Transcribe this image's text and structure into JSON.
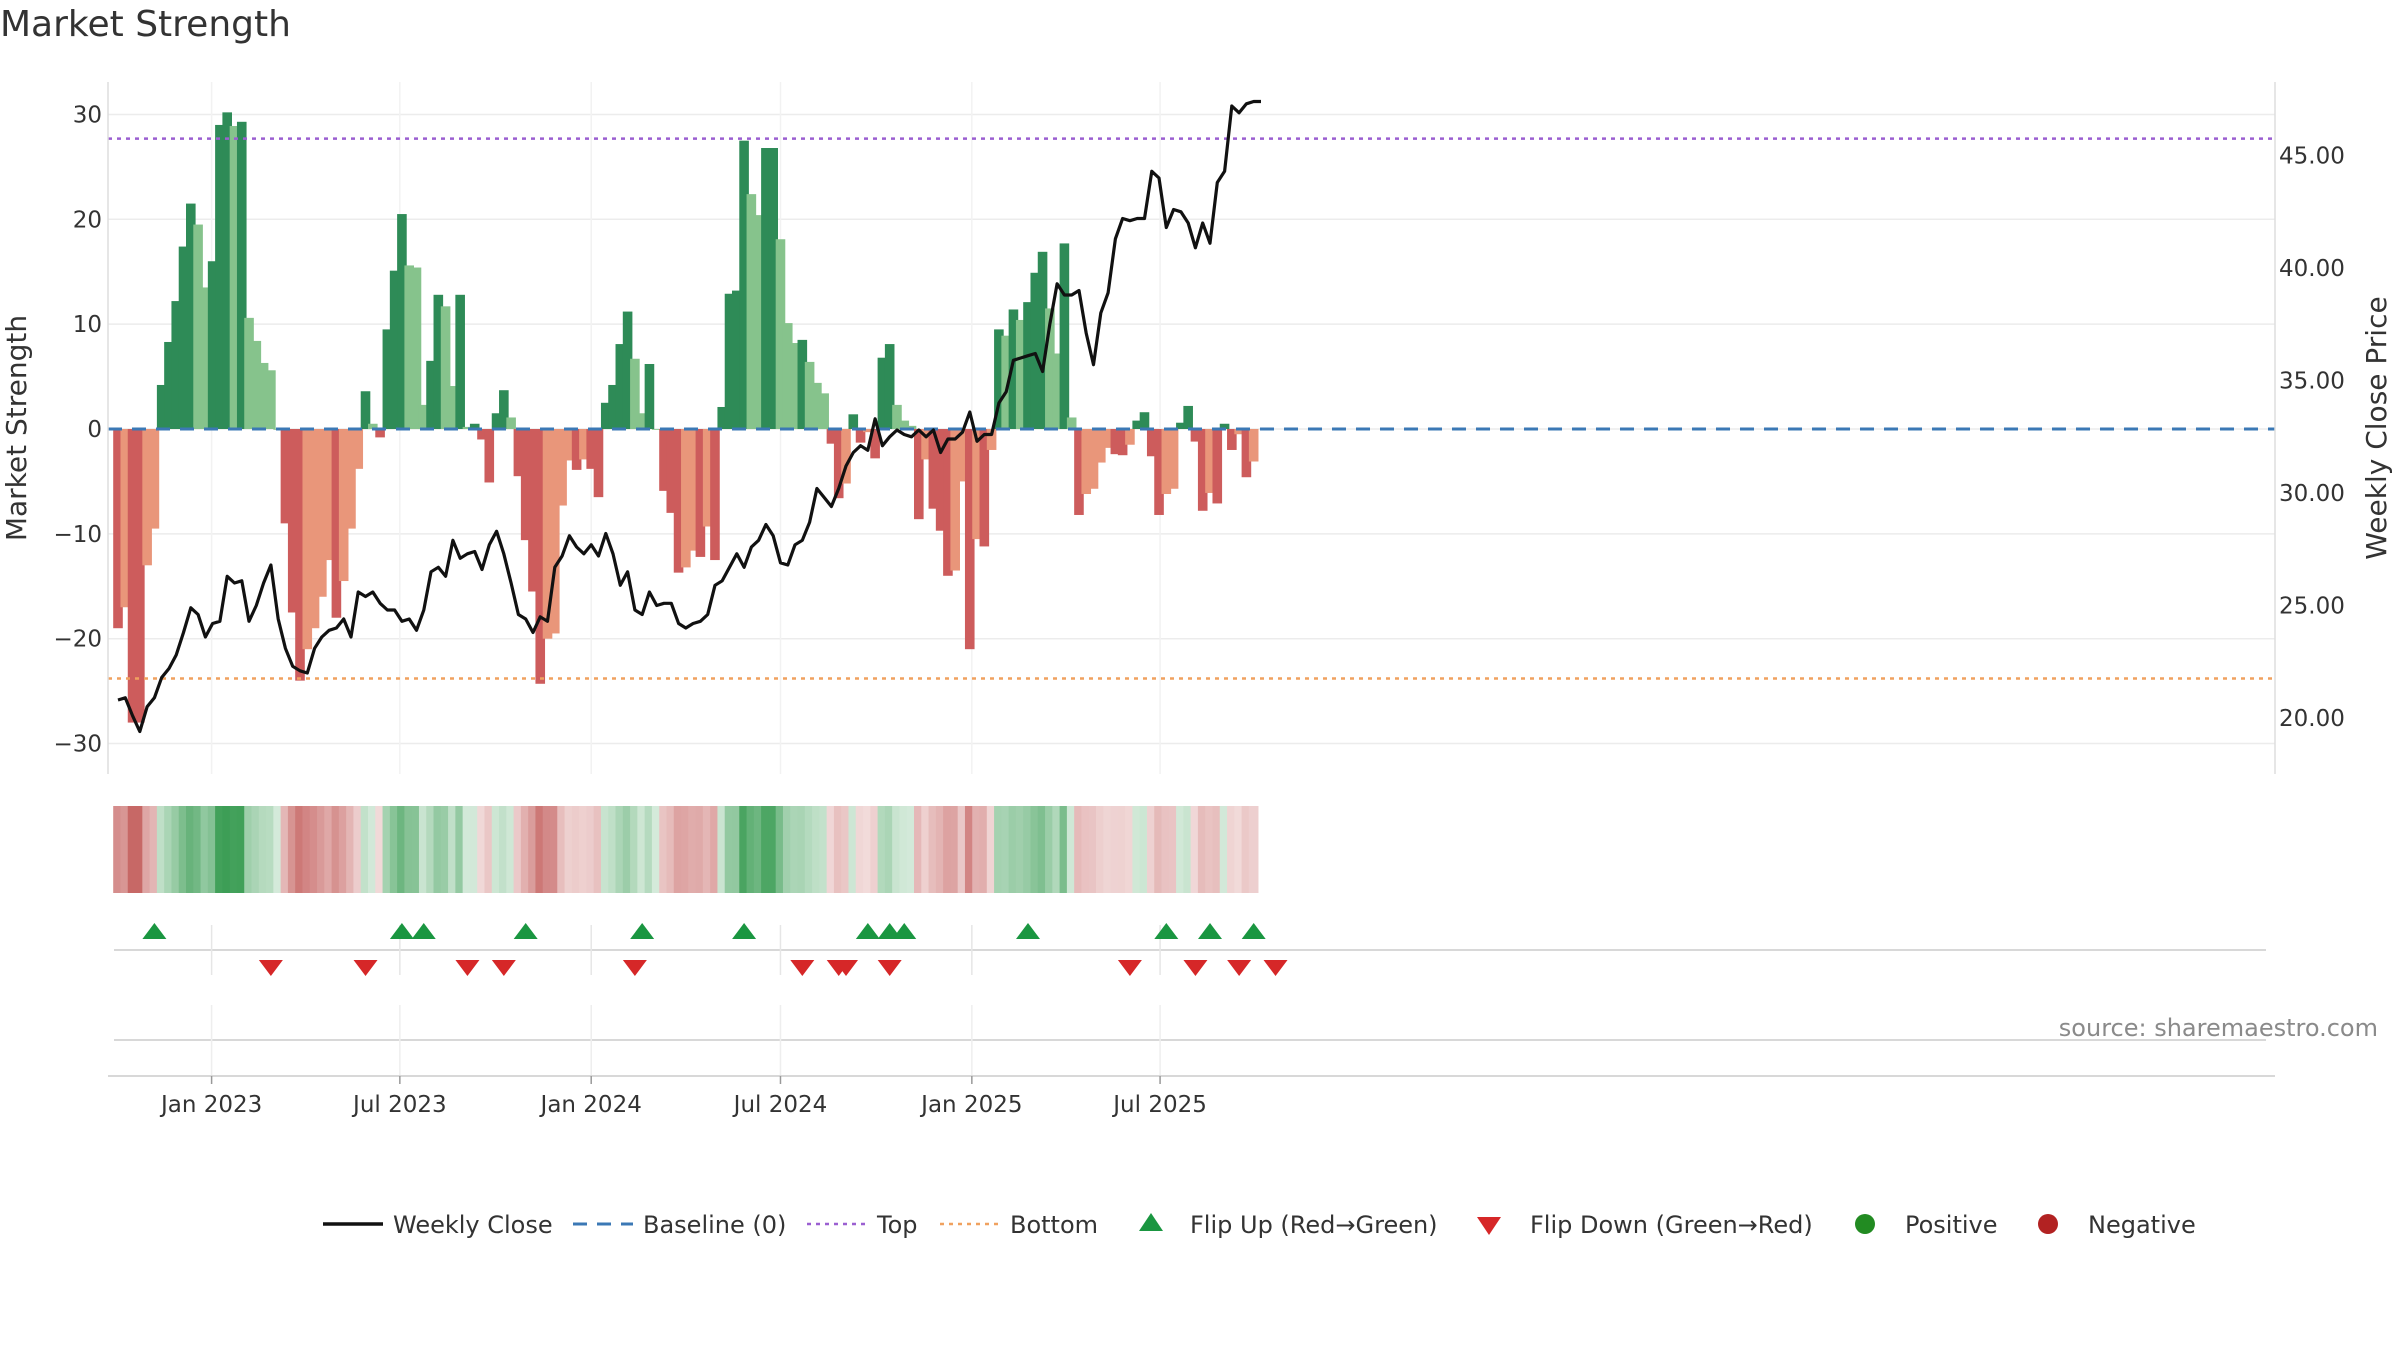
{
  "title": "Market Strength",
  "source": "source: sharemaestro.com",
  "colors": {
    "pos_dark": "#2e8b57",
    "pos_light": "#86c38c",
    "neg_dark": "#cd5c5c",
    "neg_light": "#e9967a",
    "line": "#111111",
    "baseline": "#3b78b5",
    "top": "#9b5fd1",
    "bottom": "#f0a15f",
    "flip_up": "#1a9641",
    "flip_down": "#d62728",
    "legend_pos": "#228b22",
    "legend_neg": "#b22222"
  },
  "chart_data": {
    "type": "bar",
    "title": "Market Strength",
    "ylabel": "Market Strength",
    "y2label": "Weekly Close Price",
    "ylim": [
      -33,
      33
    ],
    "y2lim": [
      16.8,
      48.5
    ],
    "yticks": [
      -30,
      -20,
      -10,
      0,
      10,
      20,
      30
    ],
    "y2ticks": [
      20,
      25,
      30,
      35,
      40,
      45
    ],
    "y2tick_labels": [
      "20.00",
      "25.00",
      "30.00",
      "35.00",
      "40.00",
      "45.00"
    ],
    "top_level": 27.7,
    "bottom_level": -23.8,
    "start_date": "2022-10-03",
    "x_ticks": [
      {
        "label": "Jan 2023",
        "date": "2023-01-01"
      },
      {
        "label": "Jul 2023",
        "date": "2023-07-01"
      },
      {
        "label": "Jan 2024",
        "date": "2024-01-01"
      },
      {
        "label": "Jul 2024",
        "date": "2024-07-01"
      },
      {
        "label": "Jan 2025",
        "date": "2025-01-01"
      },
      {
        "label": "Jul 2025",
        "date": "2025-07-01"
      }
    ],
    "strength": [
      -19,
      -17,
      -28,
      -28,
      -13,
      -9.5,
      4.2,
      8.3,
      12.2,
      17.4,
      21.5,
      19.5,
      13.5,
      16,
      29,
      30.2,
      28.9,
      29.3,
      10.6,
      8.4,
      6.3,
      5.6,
      0,
      -9,
      -17.5,
      -24,
      -21,
      -19,
      -16,
      -12.5,
      -18,
      -14.5,
      -9.5,
      -3.8,
      3.6,
      0.5,
      -0.8,
      9.5,
      15.1,
      20.5,
      15.6,
      15.4,
      2.3,
      6.5,
      12.8,
      11.7,
      4.1,
      12.8,
      0.2,
      0.5,
      -1,
      -5.1,
      1.5,
      3.7,
      1.1,
      -4.5,
      -10.6,
      -15.5,
      -24.3,
      -20,
      -19.5,
      -7.3,
      -3,
      -3.9,
      -2.9,
      -3.8,
      -6.5,
      2.5,
      4.2,
      8.1,
      11.2,
      6.7,
      1.5,
      6.2,
      0,
      -5.9,
      -8,
      -13.7,
      -13.2,
      -11.6,
      -12.2,
      -9.3,
      -12.5,
      2.1,
      12.9,
      13.2,
      27.5,
      22.4,
      20.4,
      26.8,
      26.8,
      18.1,
      10.1,
      8.2,
      8.5,
      6.4,
      4.4,
      3.4,
      -1.4,
      -6.6,
      -5.2,
      1.4,
      -1.3,
      -0.3,
      -2.8,
      6.8,
      8.1,
      2.3,
      0.8,
      0.3,
      -8.6,
      -2.9,
      -7.6,
      -9.7,
      -14,
      -13.5,
      -5,
      -21,
      -10.5,
      -11.2,
      -2,
      9.5,
      8.9,
      11.4,
      10.4,
      12.1,
      14.9,
      16.9,
      11.5,
      7.2,
      17.7,
      1.1,
      -8.2,
      -6.2,
      -5.7,
      -3.2,
      -1.8,
      -2.4,
      -2.5,
      -1.5,
      0.8,
      1.6,
      -2.6,
      -8.2,
      -6.2,
      -5.7,
      0.6,
      2.2,
      -1.2,
      -7.8,
      -6.1,
      -7.1,
      0.5,
      -2,
      -0.5,
      -4.6,
      -3.1
    ],
    "weekly_close": [
      20.8,
      20.9,
      20.1,
      19.4,
      20.5,
      20.9,
      21.8,
      22.2,
      22.8,
      23.8,
      24.9,
      24.6,
      23.6,
      24.2,
      24.3,
      26.3,
      26.0,
      26.1,
      24.3,
      25.0,
      26.0,
      26.8,
      24.4,
      23.1,
      22.3,
      22.1,
      22.0,
      23.1,
      23.6,
      23.9,
      24.0,
      24.4,
      23.6,
      25.6,
      25.4,
      25.6,
      25.1,
      24.8,
      24.8,
      24.3,
      24.4,
      23.9,
      24.8,
      26.5,
      26.7,
      26.3,
      27.9,
      27.1,
      27.3,
      27.4,
      26.6,
      27.7,
      28.3,
      27.3,
      26.0,
      24.6,
      24.4,
      23.8,
      24.5,
      24.3,
      26.7,
      27.2,
      28.1,
      27.6,
      27.3,
      27.7,
      27.2,
      28.2,
      27.3,
      25.9,
      26.5,
      24.8,
      24.6,
      25.6,
      25.0,
      25.1,
      25.1,
      24.2,
      24.0,
      24.2,
      24.3,
      24.6,
      25.9,
      26.1,
      26.7,
      27.3,
      26.7,
      27.6,
      27.9,
      28.6,
      28.1,
      26.9,
      26.8,
      27.7,
      27.9,
      28.7,
      30.2,
      29.8,
      29.4,
      30.2,
      31.2,
      31.8,
      32.1,
      31.9,
      33.3,
      32.1,
      32.5,
      32.8,
      32.6,
      32.5,
      32.8,
      32.5,
      32.8,
      31.8,
      32.4,
      32.4,
      32.7,
      33.6,
      32.3,
      32.6,
      32.6,
      34.0,
      34.5,
      35.9,
      36.0,
      36.1,
      36.2,
      35.4,
      37.5,
      39.3,
      38.8,
      38.8,
      39.0,
      37.1,
      35.7,
      38.0,
      38.9,
      41.3,
      42.2,
      42.1,
      42.2,
      42.2,
      44.3,
      44.0,
      41.8,
      42.6,
      42.5,
      42.0,
      40.9,
      42.0,
      41.1,
      43.8,
      44.3,
      47.2,
      46.9,
      47.3,
      47.4,
      47.4
    ],
    "flip_up_idx": [
      5,
      39,
      42,
      56,
      72,
      86,
      103,
      106,
      108,
      125,
      144,
      150,
      156
    ],
    "flip_down_idx": [
      21,
      34,
      48,
      53,
      71,
      94,
      99,
      100,
      106,
      139,
      148,
      154,
      159
    ]
  },
  "legend": [
    {
      "key": "line",
      "label": "Weekly Close"
    },
    {
      "key": "baseline",
      "label": "Baseline (0)"
    },
    {
      "key": "top",
      "label": "Top"
    },
    {
      "key": "bottom",
      "label": "Bottom"
    },
    {
      "key": "flip_up",
      "label": "Flip Up (Red→Green)"
    },
    {
      "key": "flip_down",
      "label": "Flip Down (Green→Red)"
    },
    {
      "key": "positive",
      "label": "Positive"
    },
    {
      "key": "negative",
      "label": "Negative"
    }
  ]
}
